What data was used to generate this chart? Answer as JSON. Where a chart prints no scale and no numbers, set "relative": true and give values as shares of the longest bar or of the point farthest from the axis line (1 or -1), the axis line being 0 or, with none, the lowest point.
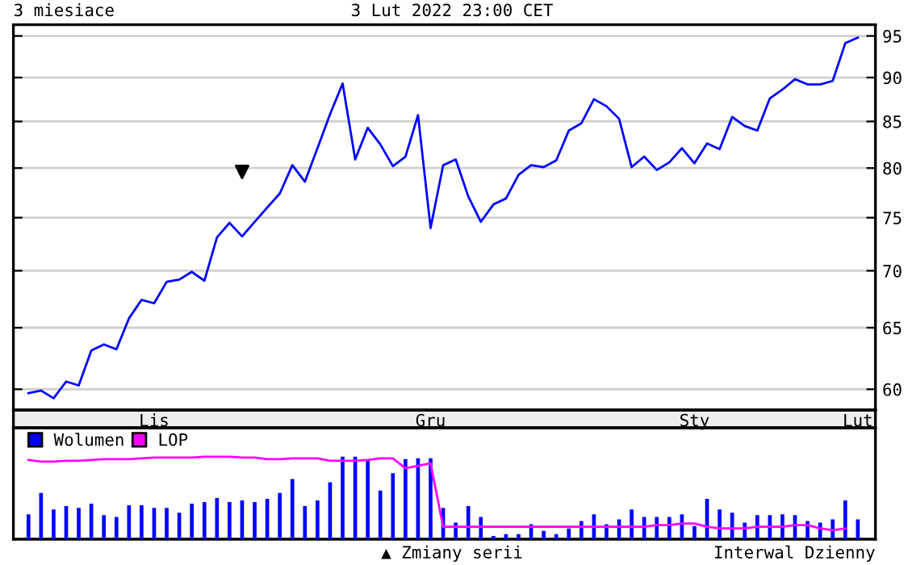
{
  "chart_data": [
    {
      "type": "line",
      "title": "3 miesiace",
      "subtitle": "3 Lut 2022 23:00 CET",
      "log": "y",
      "grid": "y",
      "line_style": "solid",
      "categories": [
        null,
        null,
        null,
        null,
        null,
        null,
        null,
        null,
        null,
        null,
        "Lis",
        null,
        null,
        null,
        null,
        null,
        null,
        null,
        null,
        null,
        null,
        null,
        null,
        null,
        null,
        null,
        null,
        null,
        null,
        null,
        null,
        null,
        "Gru",
        null,
        null,
        null,
        null,
        null,
        null,
        null,
        null,
        null,
        null,
        null,
        null,
        null,
        null,
        null,
        null,
        null,
        null,
        null,
        null,
        "Sty",
        null,
        null,
        null,
        null,
        null,
        null,
        null,
        null,
        null,
        null,
        null,
        null,
        "Lut"
      ],
      "ylim": [
        58.4,
        96.4
      ],
      "yticks": [
        60,
        65,
        70,
        75,
        80,
        85,
        90,
        95
      ],
      "series": [
        {
          "color": "#0000ff",
          "values": [
            59.7,
            59.9,
            59.3,
            60.6,
            60.3,
            63.1,
            63.6,
            63.2,
            65.8,
            67.4,
            67.1,
            69.0,
            69.2,
            69.9,
            69.1,
            73.1,
            74.5,
            73.2,
            74.6,
            76.0,
            77.4,
            80.3,
            78.6,
            82.1,
            85.8,
            89.3,
            80.9,
            84.3,
            82.5,
            80.2,
            81.2,
            85.7,
            74.0,
            80.3,
            80.9,
            77.1,
            74.6,
            76.3,
            76.9,
            79.3,
            80.3,
            80.1,
            80.8,
            84.0,
            84.8,
            87.5,
            86.7,
            85.3,
            80.1,
            81.2,
            79.8,
            80.6,
            82.1,
            80.5,
            82.6,
            82.0,
            85.5,
            84.5,
            84.0,
            87.6,
            88.6,
            89.8,
            89.2,
            89.2,
            89.6,
            94.1,
            94.8
          ]
        },
        {
          "type": "scatter",
          "color": "#000000",
          "marker": "triangle_down",
          "values": [
            null,
            null,
            null,
            null,
            null,
            null,
            null,
            null,
            null,
            null,
            null,
            null,
            null,
            null,
            null,
            null,
            null,
            79.6,
            null,
            null,
            null,
            null,
            null,
            null,
            null,
            null,
            null,
            null,
            null,
            null,
            null,
            null,
            null,
            null,
            null,
            null,
            null,
            null,
            null,
            null,
            null,
            null,
            null,
            null,
            null,
            null,
            null,
            null,
            null,
            null,
            null,
            null,
            null,
            null,
            null,
            null,
            null,
            null,
            null,
            null,
            null,
            null,
            null,
            null,
            null,
            null,
            null
          ]
        }
      ],
      "annotations": [
        "▲ Zmiany serii",
        "Interwal Dzienny"
      ]
    },
    {
      "type": "bar",
      "relative": true,
      "legend": "top left",
      "categories": [
        null,
        null,
        null,
        null,
        null,
        null,
        null,
        null,
        null,
        null,
        null,
        null,
        null,
        null,
        null,
        null,
        null,
        null,
        null,
        null,
        null,
        null,
        null,
        null,
        null,
        null,
        null,
        null,
        null,
        null,
        null,
        null,
        null,
        null,
        null,
        null,
        null,
        null,
        null,
        null,
        null,
        null,
        null,
        null,
        null,
        null,
        null,
        null,
        null,
        null,
        null,
        null,
        null,
        null,
        null,
        null,
        null,
        null,
        null,
        null,
        null,
        null,
        null,
        null,
        null,
        null,
        null
      ],
      "series": [
        {
          "name": "Wolumen",
          "color": "#0000ff",
          "values": [
            0.3,
            0.56,
            0.36,
            0.4,
            0.38,
            0.43,
            0.29,
            0.27,
            0.41,
            0.41,
            0.38,
            0.38,
            0.32,
            0.43,
            0.45,
            0.5,
            0.45,
            0.47,
            0.45,
            0.49,
            0.56,
            0.73,
            0.4,
            0.47,
            0.69,
            1,
            1,
            0.95,
            0.59,
            0.8,
            0.97,
            0.98,
            0.98,
            0.38,
            0.2,
            0.4,
            0.27,
            0.04,
            0.06,
            0.06,
            0.18,
            0.1,
            0.06,
            0.13,
            0.22,
            0.3,
            0.18,
            0.24,
            0.36,
            0.27,
            0.27,
            0.27,
            0.3,
            0.16,
            0.49,
            0.36,
            0.32,
            0.2,
            0.29,
            0.29,
            0.3,
            0.29,
            0.22,
            0.2,
            0.24,
            0.47,
            0.24
          ]
        }
      ]
    },
    {
      "type": "line",
      "relative": true,
      "legend": "top left",
      "categories": [
        null,
        null,
        null,
        null,
        null,
        null,
        null,
        null,
        null,
        null,
        null,
        null,
        null,
        null,
        null,
        null,
        null,
        null,
        null,
        null,
        null,
        null,
        null,
        null,
        null,
        null,
        null,
        null,
        null,
        null,
        null,
        null,
        null,
        null,
        null,
        null,
        null,
        null,
        null,
        null,
        null,
        null,
        null,
        null,
        null,
        null,
        null,
        null,
        null,
        null,
        null,
        null,
        null,
        null,
        null,
        null,
        null,
        null,
        null,
        null,
        null,
        null,
        null,
        null,
        null,
        null,
        null
      ],
      "series": [
        {
          "name": "LOP",
          "color": "#ff00ff",
          "values": [
            0.96,
            0.94,
            0.94,
            0.95,
            0.95,
            0.96,
            0.97,
            0.97,
            0.97,
            0.98,
            0.99,
            0.99,
            0.99,
            0.99,
            1,
            1,
            1,
            0.99,
            0.99,
            0.97,
            0.97,
            0.98,
            0.98,
            0.98,
            0.95,
            0.95,
            0.95,
            0.96,
            0.98,
            0.98,
            0.86,
            0.89,
            0.92,
            0.15,
            0.15,
            0.15,
            0.15,
            0.15,
            0.15,
            0.15,
            0.15,
            0.15,
            0.15,
            0.15,
            0.15,
            0.15,
            0.15,
            0.15,
            0.15,
            0.15,
            0.17,
            0.17,
            0.19,
            0.19,
            0.15,
            0.13,
            0.13,
            0.13,
            0.15,
            0.15,
            0.15,
            0.17,
            0.17,
            0.13,
            0.11,
            0.13,
            null
          ]
        }
      ]
    }
  ]
}
